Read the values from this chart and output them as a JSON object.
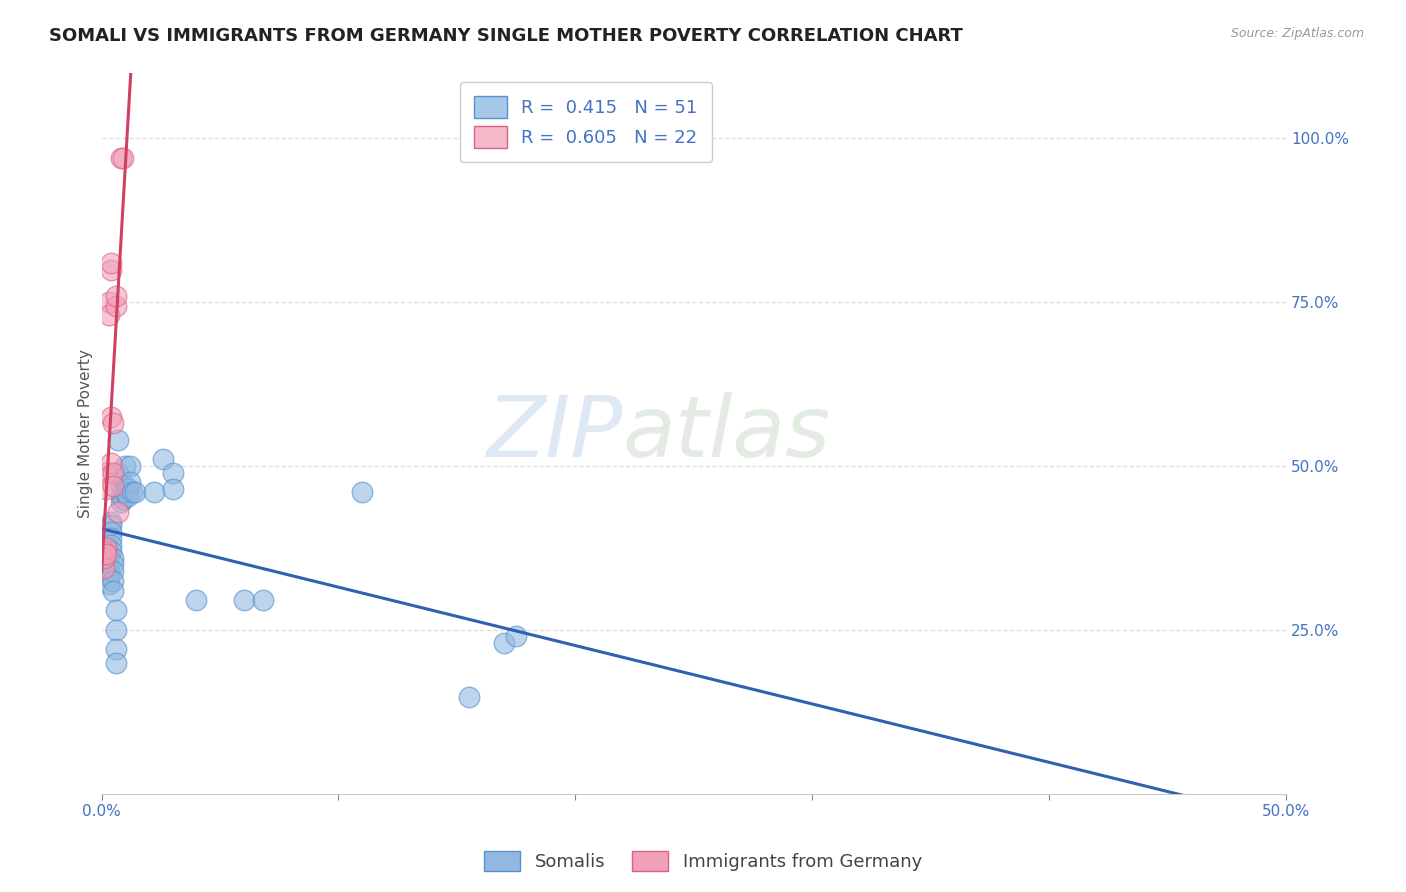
{
  "title": "SOMALI VS IMMIGRANTS FROM GERMANY SINGLE MOTHER POVERTY CORRELATION CHART",
  "source": "Source: ZipAtlas.com",
  "ylabel": "Single Mother Poverty",
  "xlim": [
    0.0,
    0.5
  ],
  "ylim": [
    0.0,
    1.1
  ],
  "x_ticks": [
    0.0,
    0.1,
    0.2,
    0.3,
    0.4,
    0.5
  ],
  "x_tick_labels": [
    "0.0%",
    "",
    "",
    "",
    "",
    "50.0%"
  ],
  "y_ticks": [
    0.25,
    0.5,
    0.75,
    1.0
  ],
  "y_tick_labels": [
    "25.0%",
    "50.0%",
    "75.0%",
    "100.0%"
  ],
  "legend_labels": [
    "Somalis",
    "Immigrants from Germany"
  ],
  "legend_R_N": [
    {
      "R": "0.415",
      "N": "51",
      "color": "#a8c8e8"
    },
    {
      "R": "0.605",
      "N": "22",
      "color": "#f4b8c8"
    }
  ],
  "watermark_text": "ZIP",
  "watermark_text2": "atlas",
  "somali_color": "#90b8e0",
  "germany_color": "#f0a0b8",
  "somali_edge_color": "#5590d0",
  "germany_edge_color": "#e06080",
  "somali_line_color": "#3060b0",
  "germany_line_color": "#d04060",
  "somali_points": [
    [
      0.002,
      0.355
    ],
    [
      0.002,
      0.37
    ],
    [
      0.002,
      0.38
    ],
    [
      0.002,
      0.345
    ],
    [
      0.003,
      0.365
    ],
    [
      0.003,
      0.35
    ],
    [
      0.003,
      0.34
    ],
    [
      0.003,
      0.33
    ],
    [
      0.003,
      0.32
    ],
    [
      0.004,
      0.415
    ],
    [
      0.004,
      0.41
    ],
    [
      0.004,
      0.4
    ],
    [
      0.004,
      0.39
    ],
    [
      0.004,
      0.38
    ],
    [
      0.004,
      0.37
    ],
    [
      0.005,
      0.36
    ],
    [
      0.005,
      0.35
    ],
    [
      0.005,
      0.34
    ],
    [
      0.005,
      0.325
    ],
    [
      0.005,
      0.31
    ],
    [
      0.006,
      0.28
    ],
    [
      0.006,
      0.25
    ],
    [
      0.006,
      0.22
    ],
    [
      0.006,
      0.2
    ],
    [
      0.007,
      0.54
    ],
    [
      0.007,
      0.49
    ],
    [
      0.008,
      0.47
    ],
    [
      0.008,
      0.455
    ],
    [
      0.008,
      0.445
    ],
    [
      0.009,
      0.46
    ],
    [
      0.009,
      0.45
    ],
    [
      0.01,
      0.5
    ],
    [
      0.01,
      0.47
    ],
    [
      0.01,
      0.46
    ],
    [
      0.011,
      0.465
    ],
    [
      0.011,
      0.455
    ],
    [
      0.012,
      0.5
    ],
    [
      0.012,
      0.475
    ],
    [
      0.013,
      0.46
    ],
    [
      0.014,
      0.46
    ],
    [
      0.022,
      0.46
    ],
    [
      0.026,
      0.51
    ],
    [
      0.03,
      0.49
    ],
    [
      0.03,
      0.465
    ],
    [
      0.04,
      0.295
    ],
    [
      0.06,
      0.295
    ],
    [
      0.068,
      0.295
    ],
    [
      0.11,
      0.46
    ],
    [
      0.155,
      0.148
    ],
    [
      0.17,
      0.23
    ],
    [
      0.175,
      0.24
    ]
  ],
  "germany_points": [
    [
      0.001,
      0.37
    ],
    [
      0.001,
      0.37
    ],
    [
      0.001,
      0.345
    ],
    [
      0.001,
      0.36
    ],
    [
      0.002,
      0.49
    ],
    [
      0.002,
      0.465
    ],
    [
      0.002,
      0.375
    ],
    [
      0.002,
      0.365
    ],
    [
      0.003,
      0.75
    ],
    [
      0.003,
      0.73
    ],
    [
      0.004,
      0.8
    ],
    [
      0.004,
      0.81
    ],
    [
      0.004,
      0.575
    ],
    [
      0.004,
      0.505
    ],
    [
      0.005,
      0.565
    ],
    [
      0.005,
      0.49
    ],
    [
      0.005,
      0.47
    ],
    [
      0.006,
      0.745
    ],
    [
      0.006,
      0.76
    ],
    [
      0.007,
      0.43
    ],
    [
      0.008,
      0.97
    ],
    [
      0.009,
      0.97
    ]
  ],
  "background_color": "#ffffff",
  "grid_color": "#dcdce8",
  "title_fontsize": 13,
  "axis_label_fontsize": 11,
  "tick_fontsize": 11,
  "legend_fontsize": 13
}
